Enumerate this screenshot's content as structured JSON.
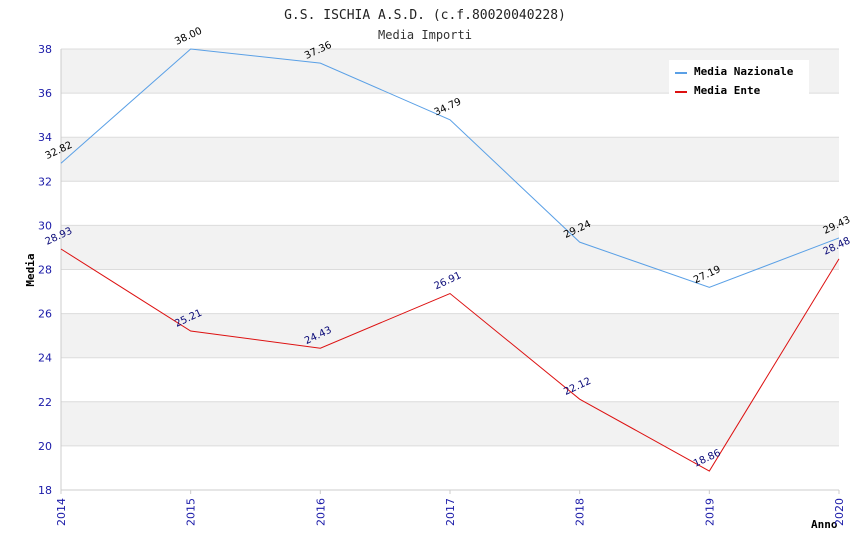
{
  "chart_data": {
    "type": "line",
    "title": "G.S. ISCHIA A.S.D. (c.f.80020040228)",
    "subtitle": "Media Importi",
    "xlabel": "Anno",
    "ylabel": "Media",
    "categories": [
      "2014",
      "2015",
      "2016",
      "2017",
      "2018",
      "2019",
      "2020"
    ],
    "ylim": [
      18,
      38
    ],
    "yticks": [
      18,
      20,
      22,
      24,
      26,
      28,
      30,
      32,
      34,
      36,
      38
    ],
    "grid": true,
    "legend_position": "top-right",
    "series": [
      {
        "name": "Media Nazionale",
        "color": "#5aa0e6",
        "label_color": "#000000",
        "values": [
          32.82,
          38.0,
          37.36,
          34.79,
          29.24,
          27.19,
          29.43
        ],
        "labels": [
          "32.82",
          "38.00",
          "37.36",
          "34.79",
          "29.24",
          "27.19",
          "29.43"
        ]
      },
      {
        "name": "Media Ente",
        "color": "#dd1111",
        "label_color": "#0a0a78",
        "values": [
          28.93,
          25.21,
          24.43,
          26.91,
          22.12,
          18.86,
          28.48
        ],
        "labels": [
          "28.93",
          "25.21",
          "24.43",
          "26.91",
          "22.12",
          "18.86",
          "28.48"
        ]
      }
    ]
  }
}
